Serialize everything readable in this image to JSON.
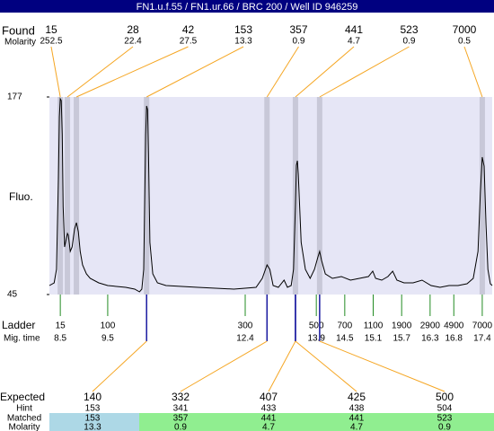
{
  "chart_data": {
    "type": "electropherogram",
    "title": "FN1.u.f.55 / FN1.ur.66 / BRC 200 / Well ID 946259",
    "ylabel": "Fluo.",
    "ylim": [
      45,
      177
    ],
    "yticks": [
      45,
      177
    ],
    "xlim": [
      8.27,
      17.61
    ],
    "trace": {
      "color": "#000000",
      "x": [
        8.27,
        8.37,
        8.42,
        8.46,
        8.48,
        8.5,
        8.52,
        8.54,
        8.56,
        8.59,
        8.63,
        8.65,
        8.67,
        8.71,
        8.75,
        8.8,
        8.84,
        8.88,
        8.92,
        8.97,
        9.05,
        9.13,
        9.31,
        9.5,
        9.88,
        10.07,
        10.17,
        10.22,
        10.26,
        10.3,
        10.32,
        10.34,
        10.36,
        10.39,
        10.45,
        10.55,
        10.73,
        11.4,
        12.16,
        12.63,
        12.76,
        12.86,
        12.92,
        12.99,
        13.1,
        13.22,
        13.29,
        13.37,
        13.42,
        13.46,
        13.48,
        13.5,
        13.52,
        13.58,
        13.67,
        13.77,
        13.86,
        13.94,
        13.97,
        14.01,
        14.09,
        14.24,
        14.43,
        14.62,
        14.81,
        15.0,
        15.09,
        15.15,
        15.28,
        15.41,
        15.51,
        15.6,
        15.75,
        15.94,
        16.13,
        16.32,
        16.51,
        16.7,
        16.89,
        17.08,
        17.21,
        17.31,
        17.36,
        17.4,
        17.44,
        17.48,
        17.52,
        17.57,
        17.61
      ],
      "y": [
        51,
        52.8,
        61.8,
        121.8,
        163.8,
        175.8,
        174.6,
        151.8,
        103.8,
        76.8,
        82.8,
        85.8,
        84.6,
        73.8,
        76.8,
        88.8,
        93,
        87,
        73.8,
        64.8,
        58.8,
        55.8,
        52.8,
        51,
        49.8,
        48.6,
        46.8,
        48.6,
        61.8,
        151.8,
        171,
        168.6,
        139.8,
        79.8,
        58.8,
        52.8,
        51,
        49.8,
        48.6,
        49.8,
        55.8,
        64.8,
        61.8,
        51,
        49.8,
        54.6,
        49.8,
        51,
        61.8,
        103.8,
        131.4,
        134.4,
        125.4,
        79.8,
        61.8,
        55.8,
        61.8,
        70.8,
        73.8,
        67.8,
        58.8,
        55.8,
        57,
        54.6,
        55.8,
        57,
        60.6,
        55.8,
        54.6,
        57,
        60.6,
        54.6,
        52.8,
        52.8,
        54.6,
        51,
        49.8,
        51,
        51,
        52.2,
        55.8,
        73.8,
        112.8,
        136.8,
        130.8,
        91.8,
        61.8,
        52.2,
        51
      ]
    },
    "found": {
      "label": "Found",
      "molarity_label": "Molarity",
      "sizes": [
        15,
        28,
        42,
        153,
        357,
        441,
        523,
        7000
      ],
      "molarity": [
        252.5,
        22.4,
        27.5,
        13.3,
        0.9,
        4.7,
        0.9,
        0.5
      ],
      "times": [
        8.5,
        8.65,
        8.84,
        10.32,
        12.86,
        13.46,
        13.97,
        17.4
      ]
    },
    "ladder": {
      "label": "Ladder",
      "time_label": "Mig. time",
      "sizes": [
        15,
        100,
        300,
        500,
        700,
        1100,
        1900,
        2900,
        4900,
        7000
      ],
      "times": [
        8.5,
        9.5,
        12.4,
        13.9,
        14.5,
        15.1,
        15.7,
        16.3,
        16.8,
        17.4
      ]
    },
    "expected": {
      "label": "Expected",
      "hint_label": "Hint",
      "matched_label": "Matched",
      "molarity_label": "Molarity",
      "sizes": [
        140,
        332,
        407,
        425,
        500
      ],
      "hint": [
        153,
        341,
        433,
        438,
        504
      ],
      "matched": [
        153,
        357,
        441,
        441,
        523
      ],
      "molarity": [
        13.3,
        0.9,
        4.7,
        4.7,
        0.9
      ]
    }
  }
}
